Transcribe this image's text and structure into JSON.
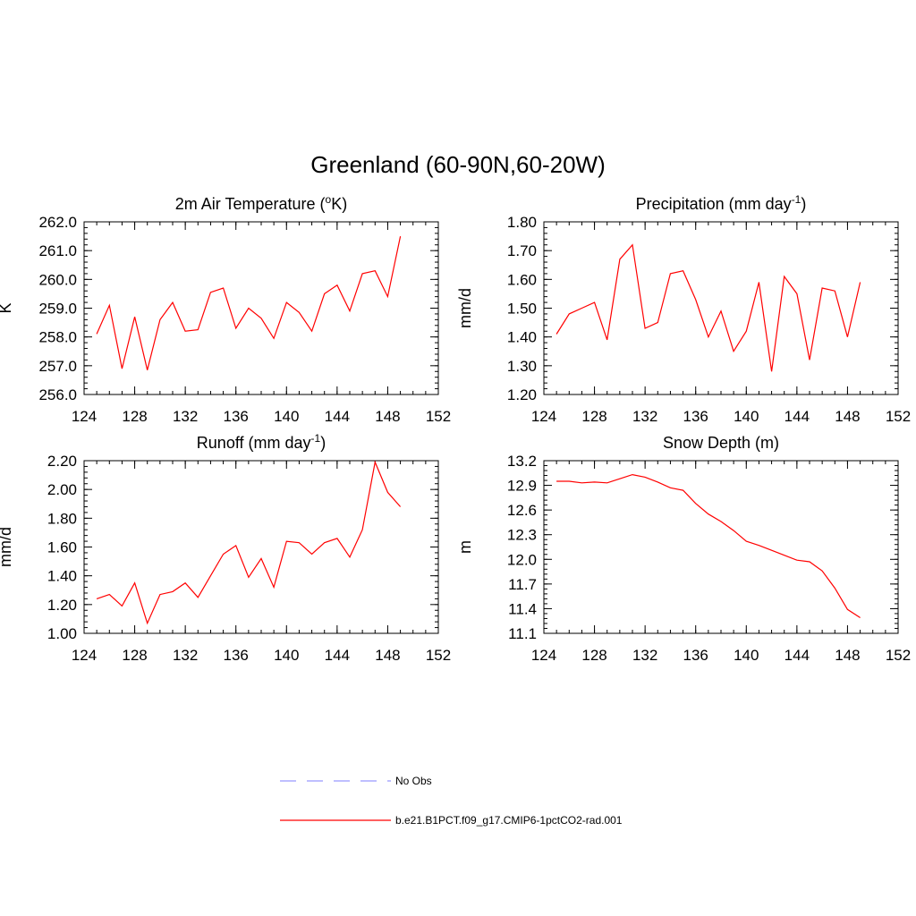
{
  "figure": {
    "title": "Greenland (60-90N,60-20W)"
  },
  "legend": [
    {
      "label": "No Obs",
      "color": "#9999ff",
      "dash": "dashed"
    },
    {
      "label": "b.e21.B1PCT.f09_g17.CMIP6-1pctCO2-rad.001",
      "color": "#ff0000",
      "dash": "solid"
    }
  ],
  "chart_data": [
    {
      "type": "line",
      "title": "2m Air Temperature (",
      "title_sup": "o",
      "title_after": "K)",
      "ylabel": "K",
      "xlim": [
        124,
        152
      ],
      "ylim": [
        256.0,
        262.0
      ],
      "xticks": [
        124,
        128,
        132,
        136,
        140,
        144,
        148,
        152
      ],
      "yticks": [
        "256.0",
        "257.0",
        "258.0",
        "259.0",
        "260.0",
        "261.0",
        "262.0"
      ],
      "x_minor_step": 1,
      "y_minor_step": 0.2,
      "series": [
        {
          "color": "#ff0000",
          "x": [
            125,
            126,
            127,
            128,
            129,
            130,
            131,
            132,
            133,
            134,
            135,
            136,
            137,
            138,
            139,
            140,
            141,
            142,
            143,
            144,
            145,
            146,
            147,
            148,
            149
          ],
          "values": [
            258.1,
            259.1,
            256.9,
            258.7,
            256.85,
            258.6,
            259.2,
            258.2,
            258.25,
            259.55,
            259.7,
            258.3,
            259.0,
            258.65,
            257.95,
            259.2,
            258.85,
            258.2,
            259.5,
            259.8,
            258.9,
            260.2,
            260.3,
            259.4,
            261.5
          ]
        }
      ]
    },
    {
      "type": "line",
      "title": "Precipitation (mm day",
      "title_sup": "-1",
      "title_after": ")",
      "ylabel": "mm/d",
      "xlim": [
        124,
        152
      ],
      "ylim": [
        1.2,
        1.8
      ],
      "xticks": [
        124,
        128,
        132,
        136,
        140,
        144,
        148,
        152
      ],
      "yticks": [
        "1.20",
        "1.30",
        "1.40",
        "1.50",
        "1.60",
        "1.70",
        "1.80"
      ],
      "x_minor_step": 1,
      "y_minor_step": 0.02,
      "series": [
        {
          "color": "#ff0000",
          "x": [
            125,
            126,
            127,
            128,
            129,
            130,
            131,
            132,
            133,
            134,
            135,
            136,
            137,
            138,
            139,
            140,
            141,
            142,
            143,
            144,
            145,
            146,
            147,
            148,
            149
          ],
          "values": [
            1.41,
            1.48,
            1.5,
            1.52,
            1.39,
            1.67,
            1.72,
            1.43,
            1.45,
            1.62,
            1.63,
            1.53,
            1.4,
            1.49,
            1.35,
            1.42,
            1.59,
            1.28,
            1.61,
            1.55,
            1.32,
            1.57,
            1.56,
            1.4,
            1.59
          ]
        }
      ]
    },
    {
      "type": "line",
      "title": "Runoff (mm day",
      "title_sup": "-1",
      "title_after": ")",
      "ylabel": "mm/d",
      "xlim": [
        124,
        152
      ],
      "ylim": [
        1.0,
        2.2
      ],
      "xticks": [
        124,
        128,
        132,
        136,
        140,
        144,
        148,
        152
      ],
      "yticks": [
        "1.00",
        "1.20",
        "1.40",
        "1.60",
        "1.80",
        "2.00",
        "2.20"
      ],
      "x_minor_step": 1,
      "y_minor_step": 0.04,
      "series": [
        {
          "color": "#ff0000",
          "x": [
            125,
            126,
            127,
            128,
            129,
            130,
            131,
            132,
            133,
            134,
            135,
            136,
            137,
            138,
            139,
            140,
            141,
            142,
            143,
            144,
            145,
            146,
            147,
            148,
            149
          ],
          "values": [
            1.24,
            1.27,
            1.19,
            1.35,
            1.07,
            1.27,
            1.29,
            1.35,
            1.25,
            1.4,
            1.55,
            1.61,
            1.39,
            1.52,
            1.32,
            1.64,
            1.63,
            1.55,
            1.63,
            1.66,
            1.53,
            1.72,
            2.19,
            1.98,
            1.88
          ]
        }
      ]
    },
    {
      "type": "line",
      "title": "Snow Depth (m)",
      "title_sup": "",
      "title_after": "",
      "ylabel": "m",
      "xlim": [
        124,
        152
      ],
      "ylim": [
        11.1,
        13.2
      ],
      "xticks": [
        124,
        128,
        132,
        136,
        140,
        144,
        148,
        152
      ],
      "yticks": [
        "11.1",
        "11.4",
        "11.7",
        "12.0",
        "12.3",
        "12.6",
        "12.9",
        "13.2"
      ],
      "x_minor_step": 1,
      "y_minor_step": 0.06,
      "series": [
        {
          "color": "#ff0000",
          "x": [
            125,
            126,
            127,
            128,
            129,
            130,
            131,
            132,
            133,
            134,
            135,
            136,
            137,
            138,
            139,
            140,
            141,
            142,
            143,
            144,
            145,
            146,
            147,
            148,
            149
          ],
          "values": [
            12.95,
            12.95,
            12.93,
            12.94,
            12.93,
            12.98,
            13.03,
            13.0,
            12.94,
            12.87,
            12.84,
            12.68,
            12.55,
            12.46,
            12.35,
            12.22,
            12.17,
            12.11,
            12.05,
            11.99,
            11.97,
            11.86,
            11.65,
            11.39,
            11.29
          ]
        }
      ]
    }
  ]
}
